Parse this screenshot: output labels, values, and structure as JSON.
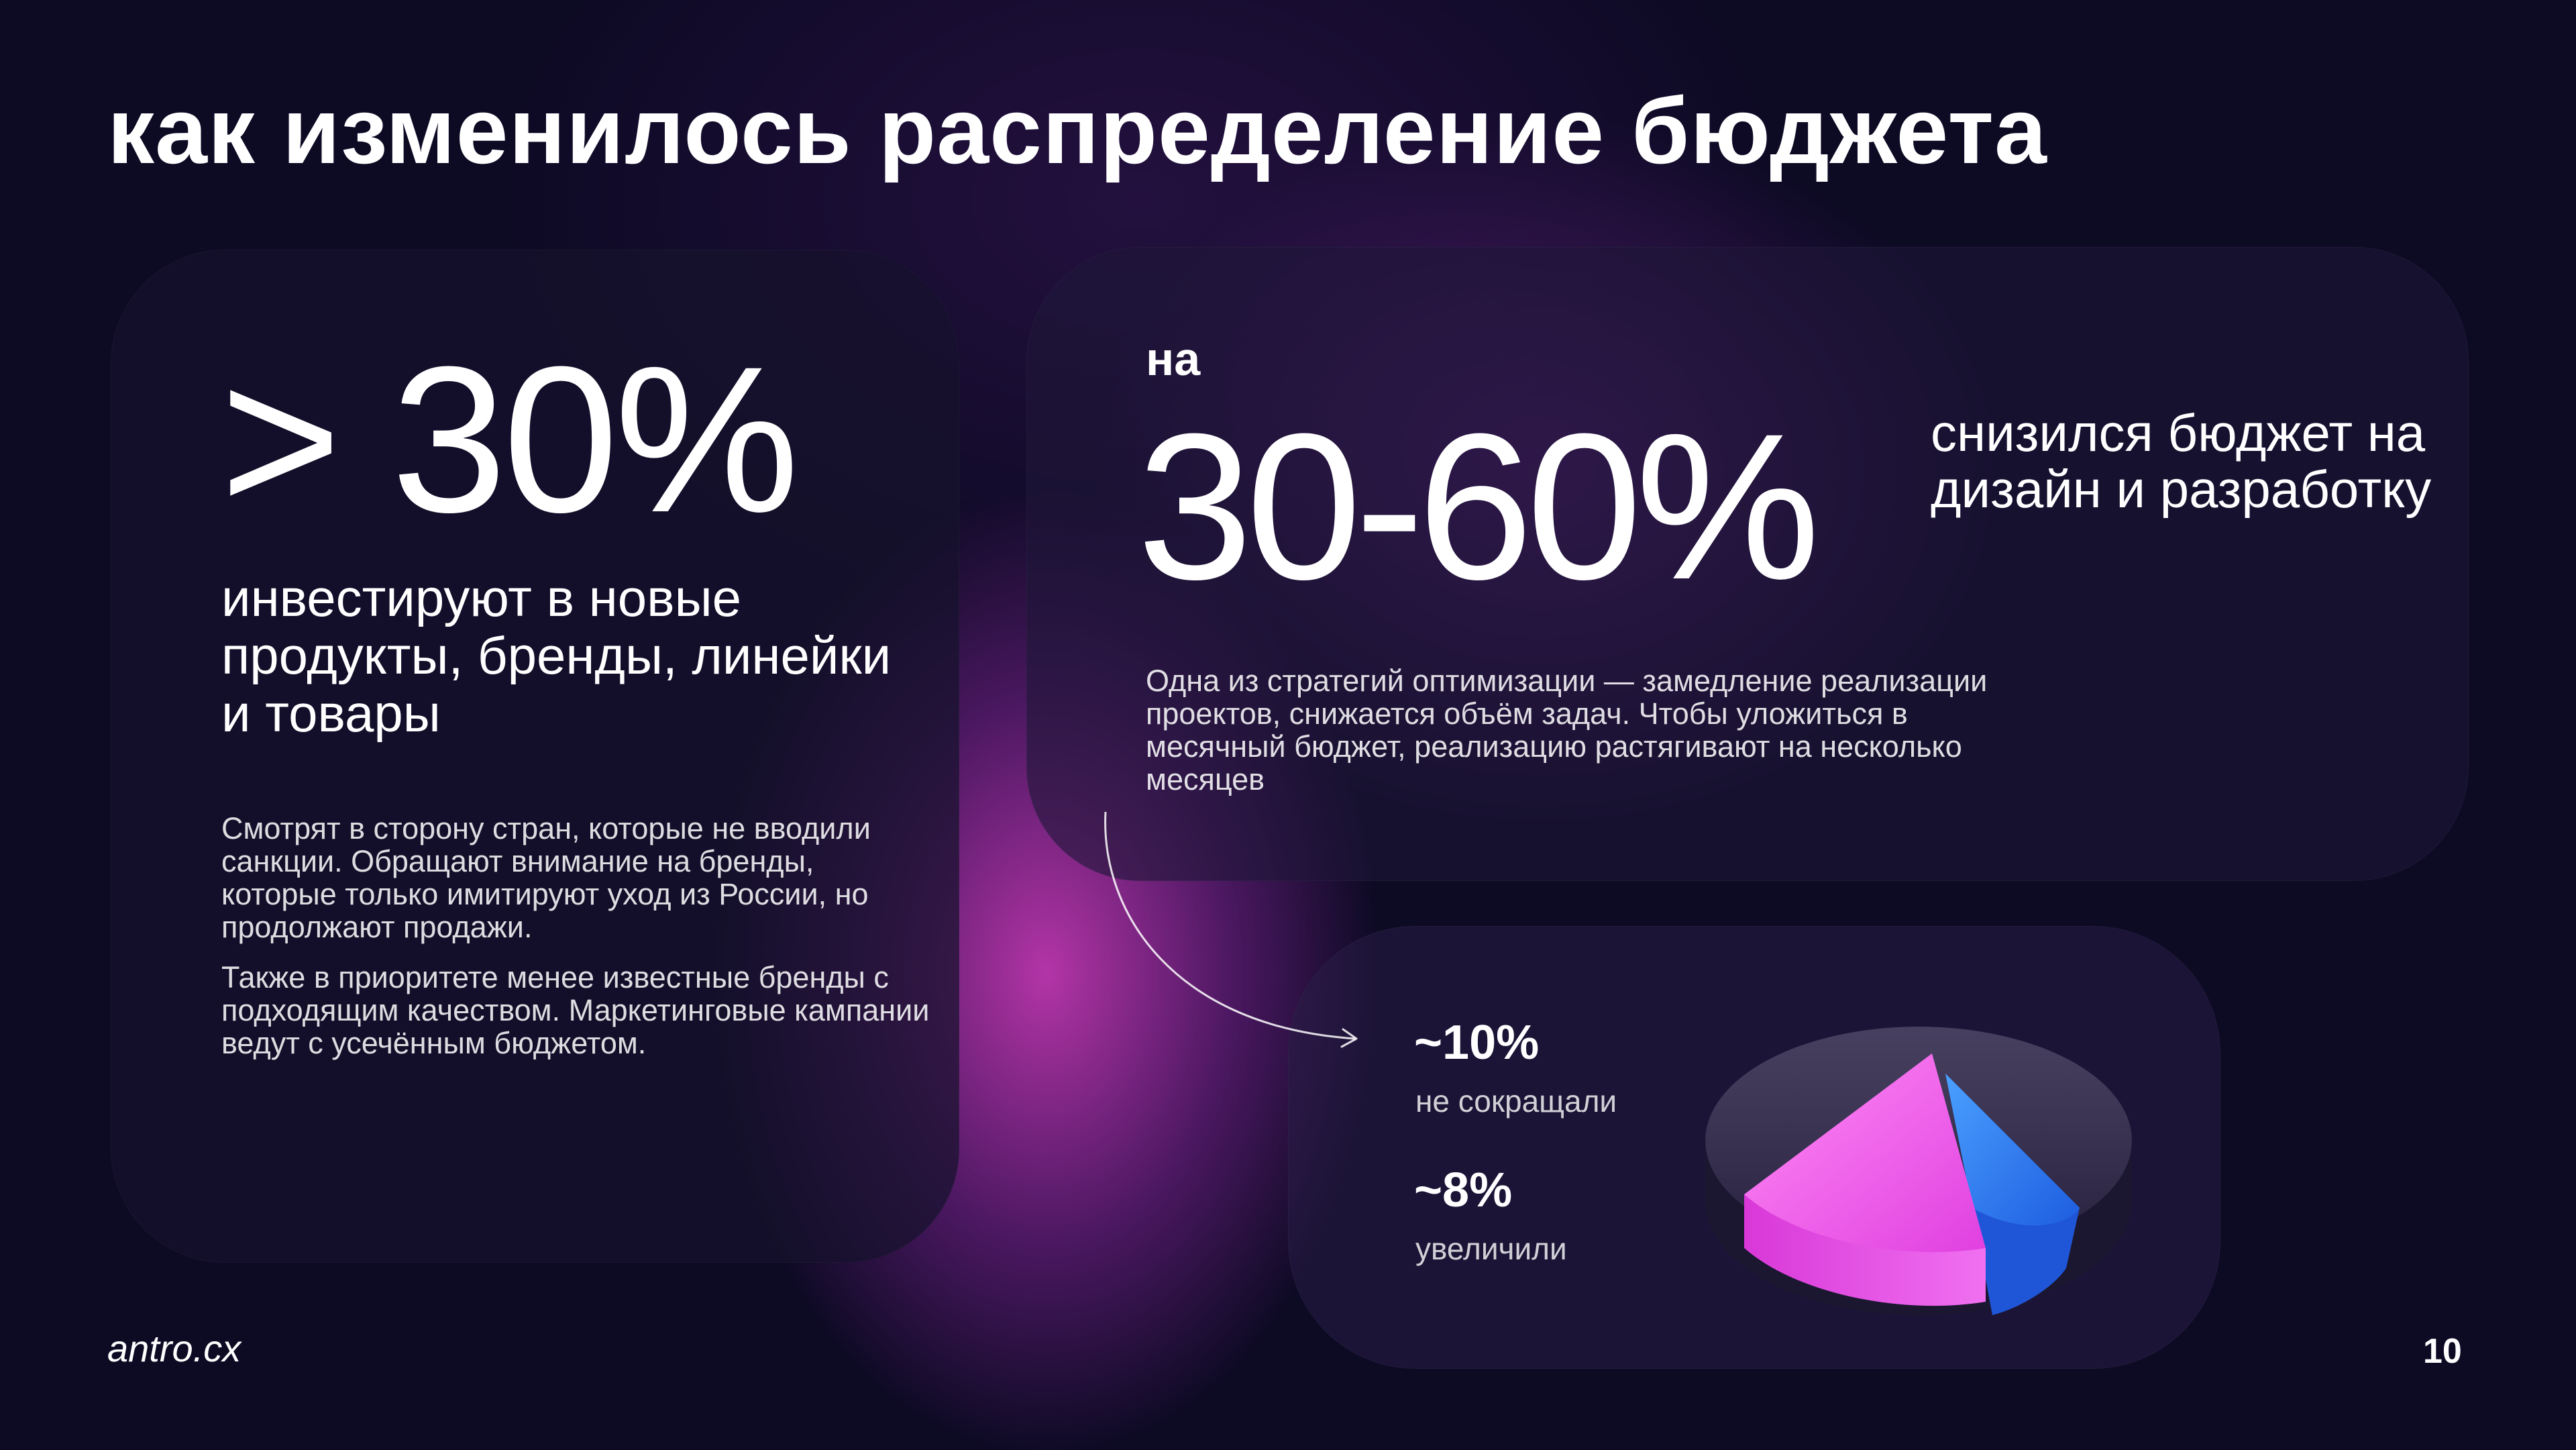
{
  "title": "как изменилось распределение бюджета",
  "left_card": {
    "big_stat": "> 30%",
    "lead": "инвестируют в новые продукты, бренды, линейки и товары",
    "body_1": "Смотрят в сторону стран, которые не вводили санкции. Обращают внимание на бренды, которые только имитируют уход из России, но продолжают продажи.",
    "body_2": "Также в приоритете менее известные бренды с подходящим качеством. Маркетинговые кампании ведут с усечённым бюджетом."
  },
  "right_card": {
    "prefix": "на",
    "big_stat": "30-60%",
    "lead": "снизился бюджет на дизайн и разработку",
    "body": "Одна из стратегий оптимизации — замедление реализации проектов, снижается объём задач. Чтобы уложиться в месячный бюджет, реализацию растягивают на несколько месяцев"
  },
  "bottom_card": {
    "stat_1": "~10%",
    "caption_1": "не сокращали",
    "stat_2": "~8%",
    "caption_2": "увеличили",
    "illustration": "3d-pie-chart",
    "colors": {
      "pink_slice": "#f050e8",
      "blue_slice": "#2f7dff",
      "base": "#3a3550"
    }
  },
  "footer": {
    "brand": "antro.cx",
    "page_number": "10"
  },
  "colors": {
    "background": "#0d0a24",
    "glow": "#d03cbe",
    "text": "#ffffff"
  }
}
